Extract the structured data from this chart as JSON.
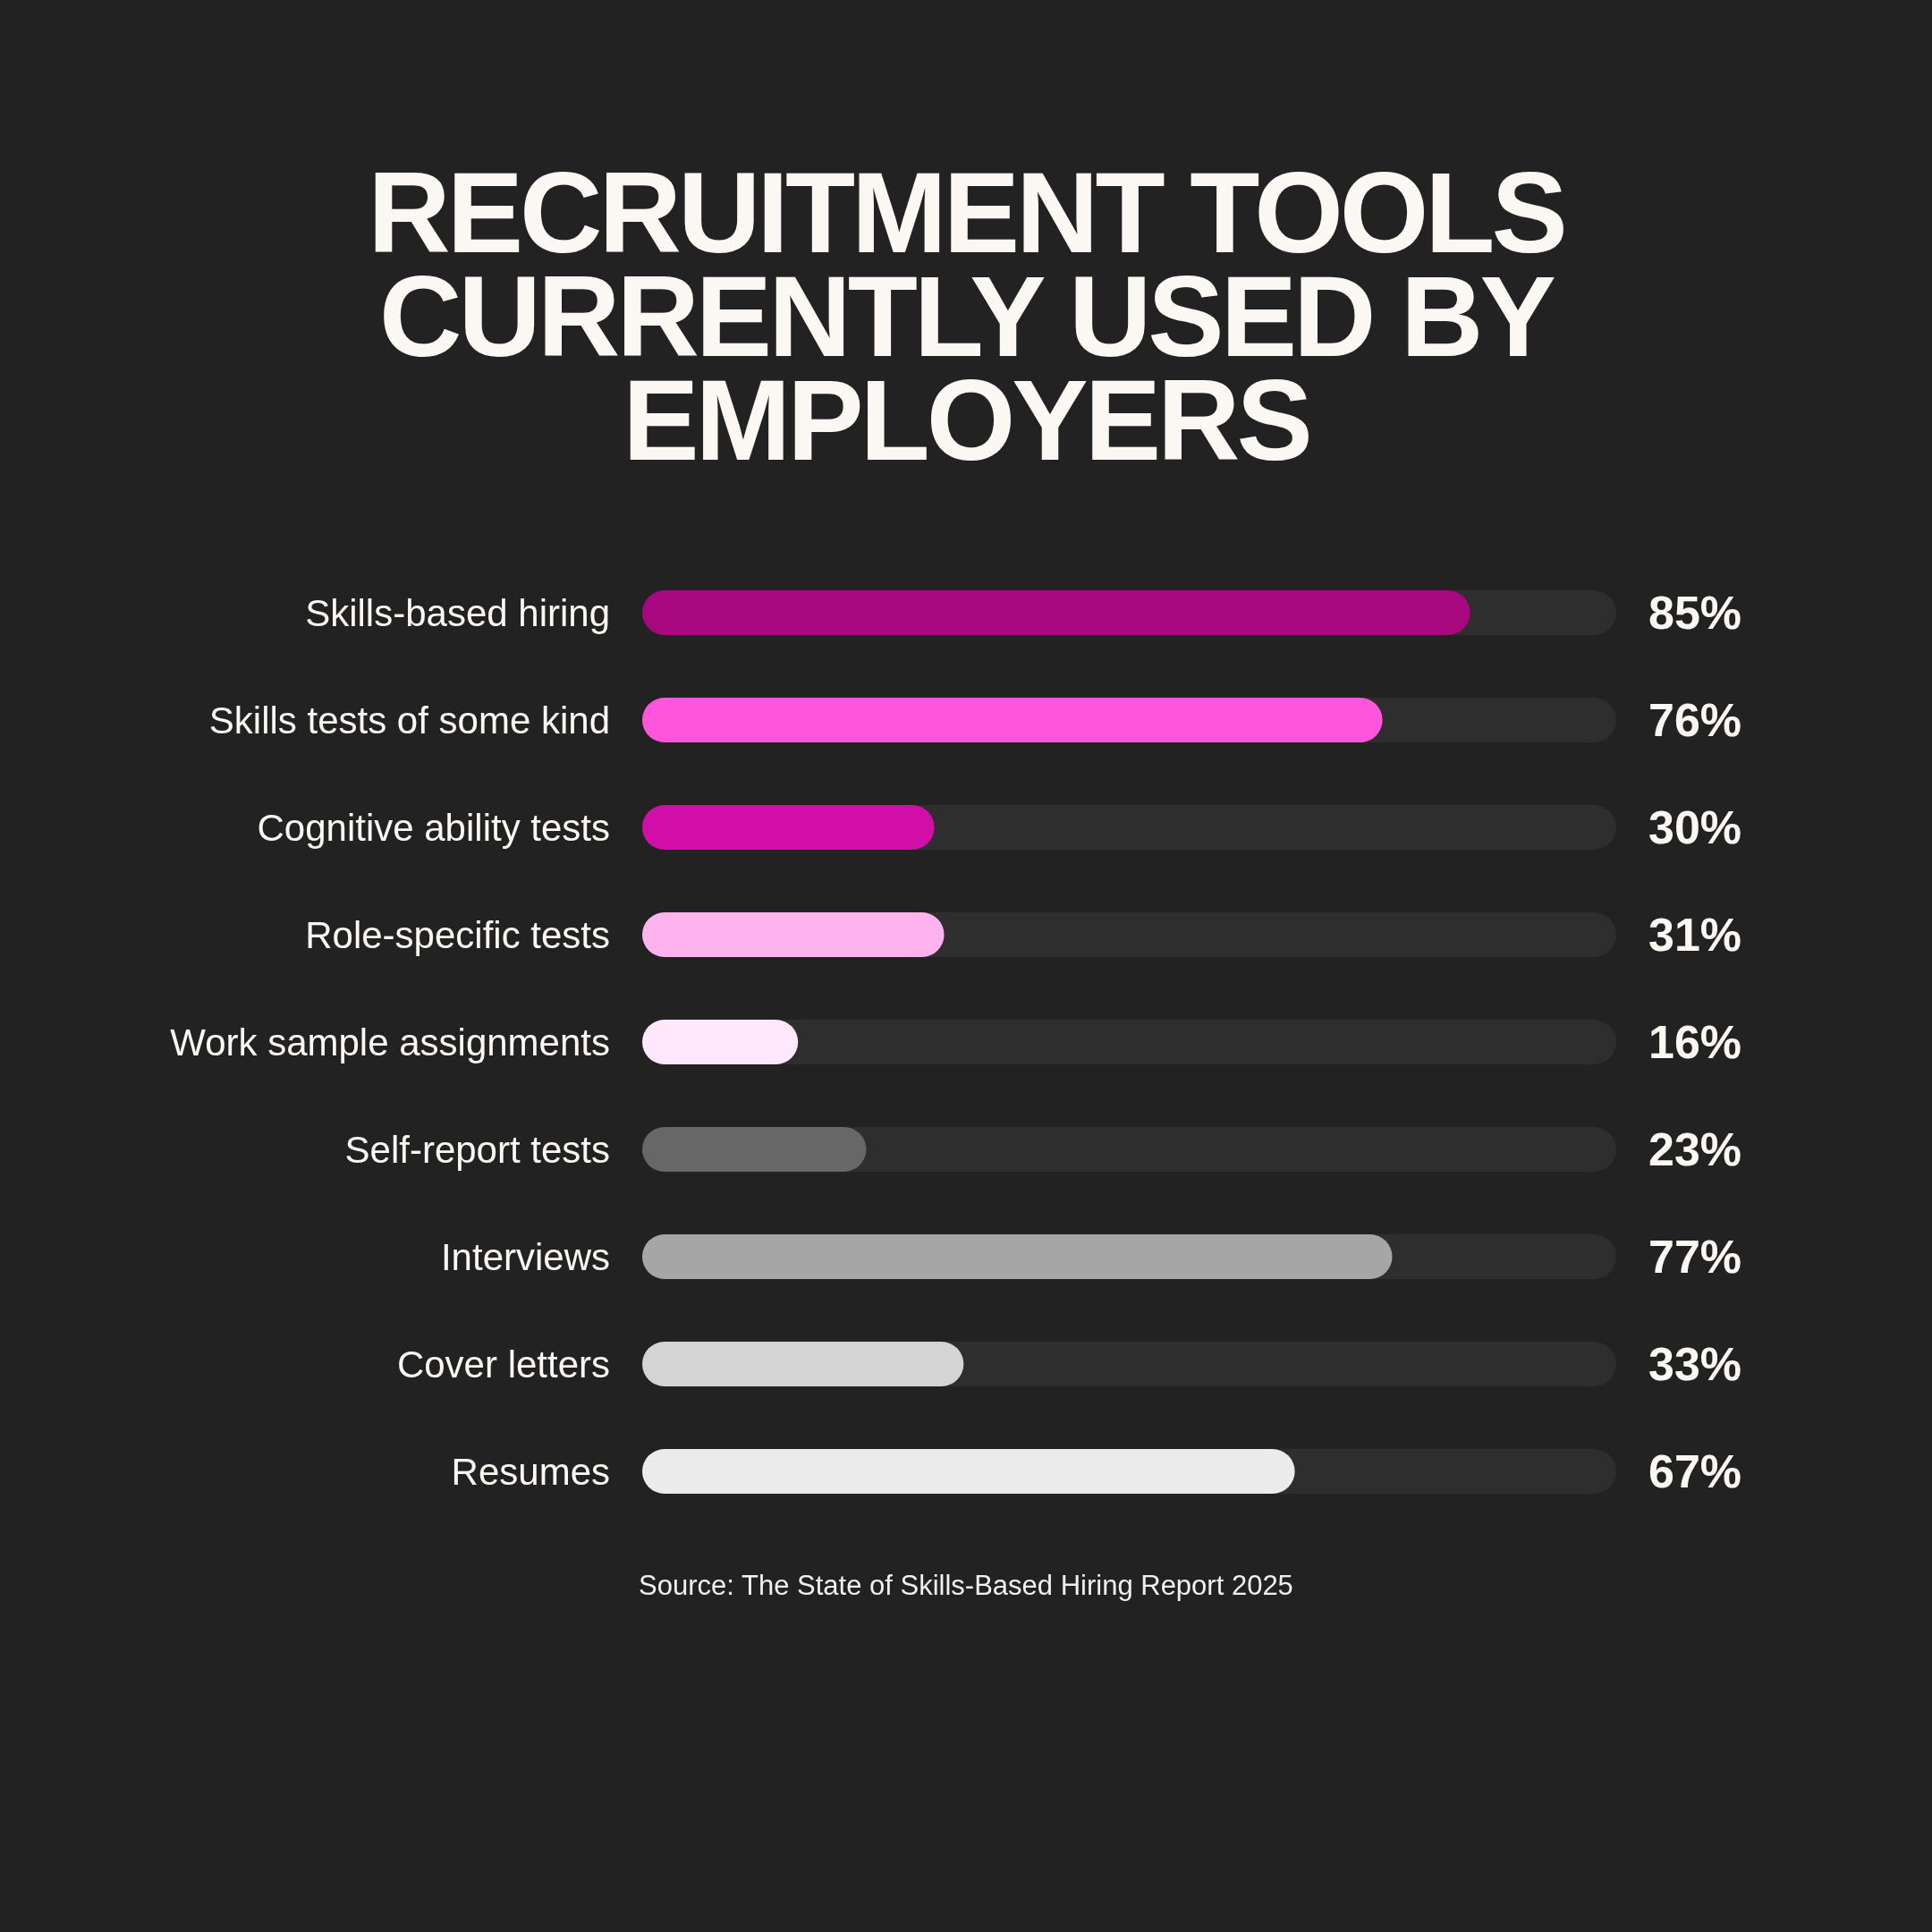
{
  "chart_data": {
    "type": "bar",
    "title": "RECRUITMENT TOOLS CURRENTLY USED BY EMPLOYERS",
    "orientation": "horizontal",
    "categories": [
      "Skills-based hiring",
      "Skills tests of some kind",
      "Cognitive ability tests",
      "Role-specific tests",
      "Work sample assignments",
      "Self-report tests",
      "Interviews",
      "Cover letters",
      "Resumes"
    ],
    "values": [
      85,
      76,
      30,
      31,
      16,
      23,
      77,
      33,
      67
    ],
    "value_labels": [
      "85%",
      "76%",
      "30%",
      "31%",
      "16%",
      "23%",
      "77%",
      "33%",
      "67%"
    ],
    "colors": [
      "#a8087f",
      "#ff55dd",
      "#d10ea8",
      "#ffb3ee",
      "#ffe8fb",
      "#676767",
      "#a6a6a6",
      "#d4d4d4",
      "#ebebeb"
    ],
    "xlim": [
      0,
      100
    ],
    "tick_labels": "y",
    "annotations": [
      "Source: The State of Skills-Based Hiring Report 2025"
    ]
  }
}
